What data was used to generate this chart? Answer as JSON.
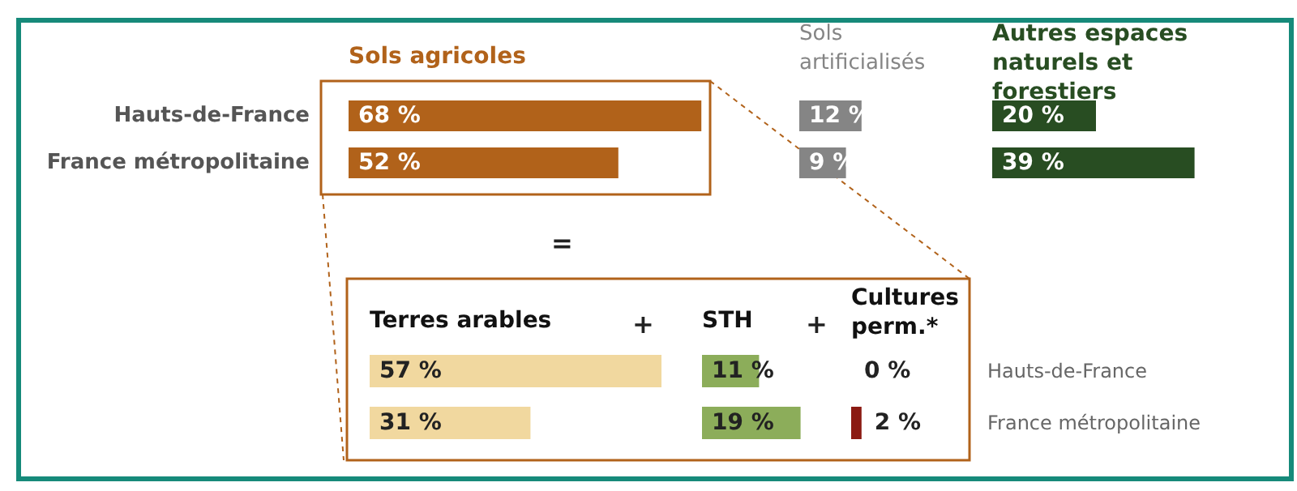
{
  "chart_data": [
    {
      "type": "bar",
      "orientation": "horizontal",
      "title": "Sols agricoles",
      "categories": [
        "Hauts-de-France",
        "France métropolitaine"
      ],
      "tick_labels": "y",
      "annotations": [
        "="
      ],
      "series": [
        {
          "color": "#b1621a",
          "values": [
            68,
            52
          ],
          "value_labels": [
            "68 %",
            "52 %"
          ]
        }
      ]
    },
    {
      "type": "bar",
      "orientation": "horizontal",
      "title": "Sols artificialisés",
      "categories": [
        "Hauts-de-France",
        "France métropolitaine"
      ],
      "tick_labels": false,
      "series": [
        {
          "color": "#858585",
          "values": [
            12,
            9
          ],
          "value_labels": [
            "12 %",
            "9 %"
          ]
        }
      ]
    },
    {
      "type": "bar",
      "orientation": "horizontal",
      "title": "Autres espaces naturels et forestiers",
      "categories": [
        "Hauts-de-France",
        "France métropolitaine"
      ],
      "tick_labels": false,
      "series": [
        {
          "color": "#284d22",
          "values": [
            20,
            39
          ],
          "value_labels": [
            "20 %",
            "39 %"
          ]
        }
      ]
    },
    {
      "type": "bar",
      "orientation": "horizontal",
      "title": "Terres arables",
      "categories": [
        "Hauts-de-France",
        "France métropolitaine"
      ],
      "tick_labels": false,
      "annotations": [
        "+"
      ],
      "series": [
        {
          "color": "#f1d89f",
          "values": [
            57,
            31
          ],
          "value_labels": [
            "57 %",
            "31 %"
          ]
        }
      ]
    },
    {
      "type": "bar",
      "orientation": "horizontal",
      "title": "STH",
      "categories": [
        "Hauts-de-France",
        "France métropolitaine"
      ],
      "tick_labels": false,
      "annotations": [
        "+"
      ],
      "series": [
        {
          "color": "#8cad5a",
          "values": [
            11,
            19
          ],
          "value_labels": [
            "11 %",
            "19 %"
          ]
        }
      ]
    },
    {
      "type": "bar",
      "orientation": "horizontal",
      "title": "Cultures perm.*",
      "categories": [
        "Hauts-de-France",
        "France métropolitaine"
      ],
      "tick_labels": "y",
      "series": [
        {
          "color": "#8b1a12",
          "values": [
            0,
            2
          ],
          "value_labels": [
            "0 %",
            "2 %"
          ]
        }
      ]
    }
  ]
}
